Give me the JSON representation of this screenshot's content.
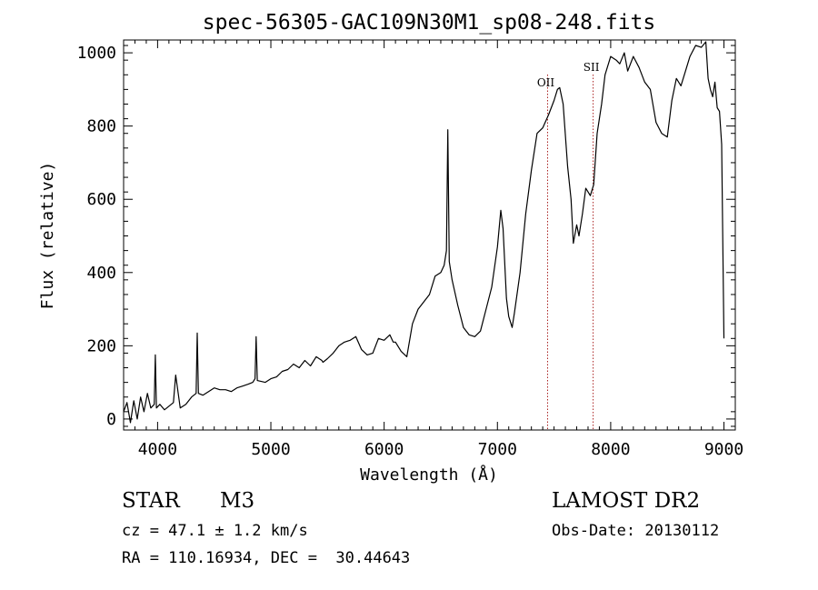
{
  "chart_data": {
    "type": "line",
    "title": "spec-56305-GAC109N30M1_sp08-248.fits",
    "xlabel": "Wavelength (Å)",
    "ylabel": "Flux (relative)",
    "xlim": [
      3700,
      9100
    ],
    "ylim": [
      -30,
      1035
    ],
    "x_ticks": [
      4000,
      5000,
      6000,
      7000,
      8000,
      9000
    ],
    "y_ticks": [
      0,
      200,
      400,
      600,
      800,
      1000
    ],
    "grid": false,
    "line_color": "#000000",
    "annotations": [
      {
        "label": "OII",
        "x": 7443,
        "color": "#aa2222",
        "style": "dotted"
      },
      {
        "label": "SII",
        "x": 7845,
        "color": "#aa2222",
        "style": "dotted"
      }
    ],
    "series": [
      {
        "x": [
          3700,
          3730,
          3760,
          3790,
          3820,
          3850,
          3880,
          3910,
          3940,
          3970,
          3980,
          3990,
          4020,
          4060,
          4100,
          4140,
          4160,
          4200,
          4250,
          4300,
          4340,
          4350,
          4360,
          4400,
          4450,
          4500,
          4550,
          4600,
          4650,
          4700,
          4750,
          4800,
          4840,
          4860,
          4870,
          4880,
          4950,
          5000,
          5050,
          5100,
          5150,
          5200,
          5250,
          5300,
          5350,
          5400,
          5450,
          5460,
          5500,
          5550,
          5600,
          5650,
          5700,
          5750,
          5800,
          5850,
          5900,
          5950,
          6000,
          6050,
          6080,
          6100,
          6150,
          6200,
          6250,
          6300,
          6350,
          6400,
          6450,
          6500,
          6530,
          6550,
          6562,
          6575,
          6600,
          6650,
          6700,
          6750,
          6800,
          6850,
          6900,
          6950,
          7000,
          7030,
          7050,
          7080,
          7100,
          7130,
          7150,
          7200,
          7250,
          7300,
          7350,
          7400,
          7450,
          7500,
          7530,
          7550,
          7580,
          7620,
          7650,
          7670,
          7700,
          7720,
          7750,
          7780,
          7820,
          7850,
          7880,
          7920,
          7950,
          8000,
          8050,
          8080,
          8120,
          8150,
          8200,
          8250,
          8300,
          8350,
          8400,
          8450,
          8500,
          8540,
          8580,
          8620,
          8660,
          8700,
          8750,
          8800,
          8840,
          8860,
          8880,
          8900,
          8920,
          8940,
          8960,
          8980,
          9000
        ],
        "values": [
          20,
          45,
          -10,
          50,
          0,
          60,
          20,
          70,
          30,
          40,
          175,
          30,
          40,
          25,
          35,
          45,
          120,
          30,
          40,
          60,
          70,
          235,
          70,
          65,
          75,
          85,
          80,
          80,
          75,
          85,
          90,
          95,
          100,
          110,
          225,
          105,
          100,
          110,
          115,
          130,
          135,
          150,
          140,
          160,
          145,
          170,
          160,
          155,
          165,
          180,
          200,
          210,
          215,
          225,
          190,
          175,
          180,
          220,
          215,
          230,
          210,
          210,
          185,
          170,
          260,
          300,
          320,
          340,
          390,
          400,
          420,
          460,
          790,
          430,
          380,
          310,
          250,
          230,
          225,
          240,
          300,
          360,
          470,
          570,
          520,
          330,
          280,
          250,
          290,
          400,
          560,
          680,
          780,
          795,
          830,
          870,
          900,
          905,
          860,
          690,
          600,
          480,
          530,
          500,
          560,
          630,
          610,
          640,
          780,
          860,
          940,
          990,
          980,
          970,
          1000,
          950,
          990,
          960,
          920,
          900,
          810,
          780,
          770,
          870,
          930,
          910,
          950,
          990,
          1020,
          1015,
          1030,
          930,
          900,
          880,
          920,
          850,
          840,
          750,
          220
        ]
      }
    ]
  },
  "footer": {
    "object_class": "STAR",
    "subclass": "M3",
    "survey": "LAMOST DR2",
    "redshift": "cz = 47.1 ± 1.2 km/s",
    "obs_date": "Obs-Date: 20130112",
    "coords": "RA = 110.16934, DEC =  30.44643"
  }
}
